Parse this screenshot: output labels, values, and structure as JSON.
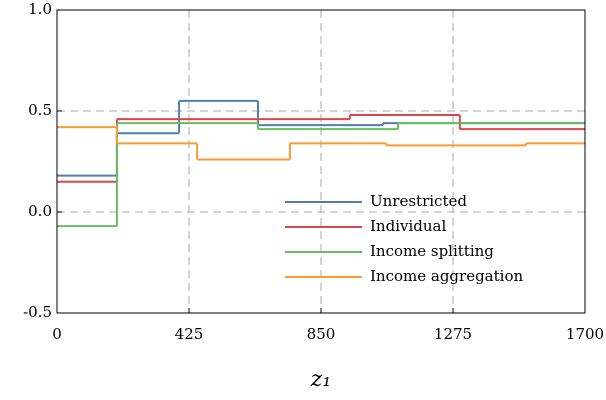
{
  "chart_data": {
    "type": "step",
    "x_label": "z₁",
    "xlim": [
      0,
      1700
    ],
    "xticks": [
      0,
      425,
      850,
      1275,
      1700
    ],
    "ylim": [
      -0.5,
      1.0
    ],
    "yticks": [
      {
        "value": 1.0,
        "label": "1.0"
      },
      0.5,
      {
        "value": 0.0,
        "label": "0.0"
      },
      -0.5
    ],
    "grid": true,
    "legend": "lower right",
    "series": [
      {
        "name": "Unrestricted",
        "color": "#4f7fad",
        "bins": [
          0,
          193,
          393,
          647,
          1050,
          1700
        ],
        "values": [
          0.18,
          0.39,
          0.55,
          0.43,
          0.44
        ]
      },
      {
        "name": "Individual",
        "color": "#e0454b",
        "bins": [
          0,
          193,
          943,
          1297,
          1700
        ],
        "values": [
          0.15,
          0.46,
          0.48,
          0.41
        ]
      },
      {
        "name": "Income splitting",
        "color": "#66bf5e",
        "bins": [
          0,
          193,
          647,
          1098,
          1700
        ],
        "values": [
          -0.07,
          0.44,
          0.41,
          0.44
        ]
      },
      {
        "name": "Income aggregation",
        "color": "#f99b2e",
        "bins": [
          0,
          193,
          451,
          750,
          1060,
          1510,
          1700
        ],
        "values": [
          0.42,
          0.34,
          0.26,
          0.34,
          0.33,
          0.34
        ]
      }
    ]
  }
}
